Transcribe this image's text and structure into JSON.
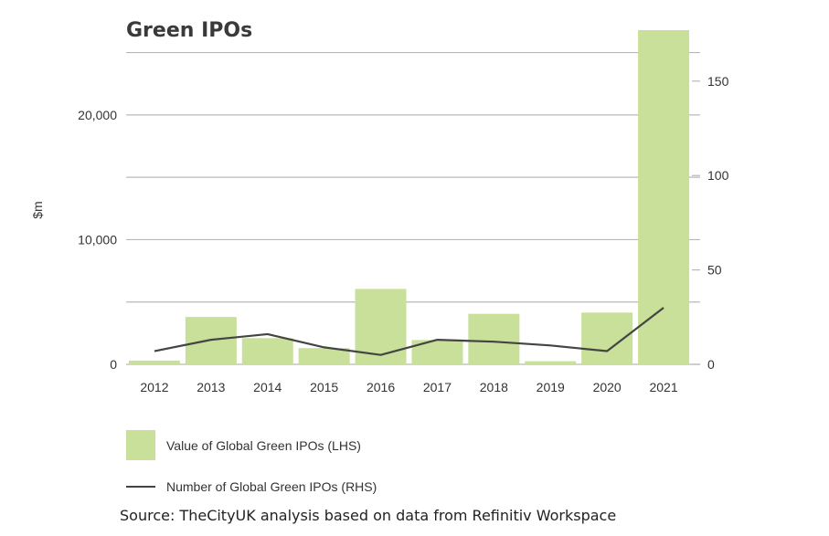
{
  "chart_data": {
    "type": "bar",
    "title": "Green IPOs",
    "ylabel": "$m",
    "categories": [
      "2012",
      "2013",
      "2014",
      "2015",
      "2016",
      "2017",
      "2018",
      "2019",
      "2020",
      "2021"
    ],
    "series": [
      {
        "name": "Value of Global Green IPOs (LHS)",
        "type": "bar",
        "axis": "left",
        "color": "#c9e09a",
        "values": [
          300,
          3800,
          2100,
          1300,
          6050,
          1950,
          4050,
          250,
          4150,
          26800
        ]
      },
      {
        "name": "Number of Global Green IPOs (RHS)",
        "type": "line",
        "axis": "right",
        "color": "#444444",
        "values": [
          7,
          13,
          16,
          9,
          5,
          13,
          12,
          10,
          7,
          30
        ]
      }
    ],
    "y_left": {
      "ticks": [
        0,
        10000,
        20000
      ],
      "tick_labels": [
        "0",
        "10,000",
        "20,000"
      ],
      "lim": [
        0,
        26800
      ]
    },
    "y_right": {
      "ticks": [
        0,
        50,
        100,
        150
      ],
      "tick_labels": [
        "0",
        "50",
        "100",
        "150"
      ],
      "lim": [
        0,
        177
      ]
    },
    "grid": true,
    "legend_position": "bottom-left"
  },
  "source": "Source: TheCityUK analysis based on data from Refinitiv Workspace"
}
